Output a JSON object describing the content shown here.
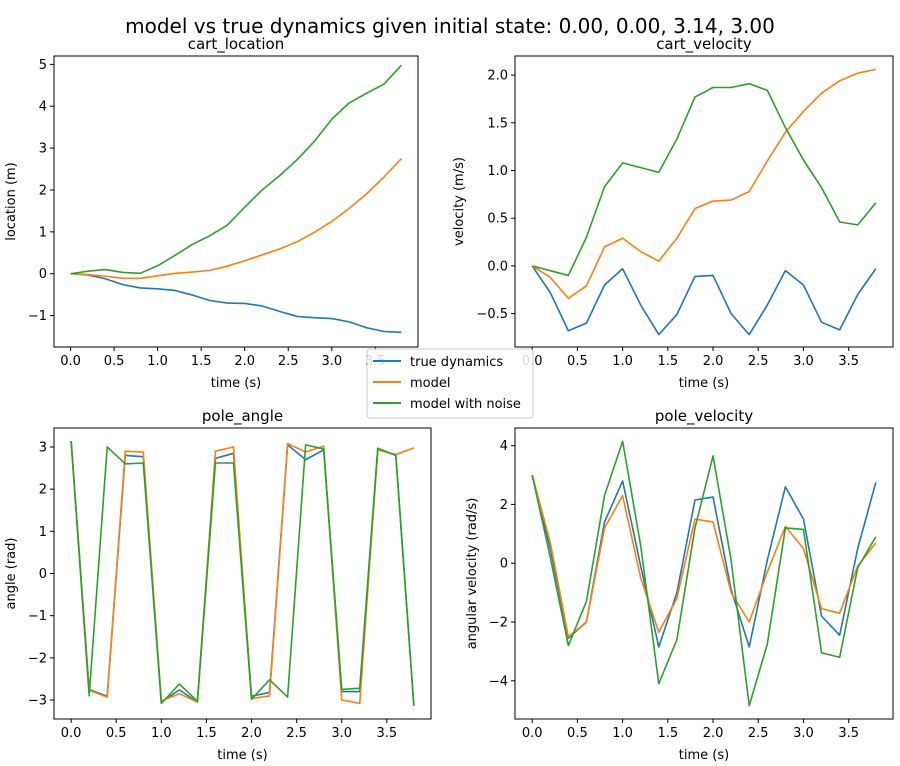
{
  "figure": {
    "suptitle": "model vs true dynamics given initial state: 0.00, 0.00, 3.14, 3.00"
  },
  "legend": {
    "entries": [
      {
        "label": "true dynamics",
        "color": "#1f77b4"
      },
      {
        "label": "model",
        "color": "#ff7f0e"
      },
      {
        "label": "model with noise",
        "color": "#2ca02c"
      }
    ]
  },
  "chart_data": [
    {
      "type": "line",
      "title": "cart_location",
      "xlabel": "time (s)",
      "ylabel": "location (m)",
      "xlim": [
        -0.19,
        3.99
      ],
      "ylim": [
        -1.75,
        5.2
      ],
      "xticks": [
        0.0,
        0.5,
        1.0,
        1.5,
        2.0,
        2.5,
        3.0,
        3.5
      ],
      "xtick_labels": [
        "0.0",
        "0.5",
        "1.0",
        "1.5",
        "2.0",
        "2.5",
        "3.0",
        "3.5"
      ],
      "yticks": [
        -1,
        0,
        1,
        2,
        3,
        4,
        5
      ],
      "ytick_labels": [
        "−1",
        "0",
        "1",
        "2",
        "3",
        "4",
        "5"
      ],
      "x": [
        0.0,
        0.2,
        0.4,
        0.6,
        0.8,
        1.0,
        1.2,
        1.4,
        1.6,
        1.8,
        2.0,
        2.2,
        2.4,
        2.6,
        2.8,
        3.0,
        3.2,
        3.4,
        3.6,
        3.8
      ],
      "series": [
        {
          "name": "true dynamics",
          "color": "#1f77b4",
          "values": [
            0.0,
            -0.03,
            -0.12,
            -0.26,
            -0.34,
            -0.36,
            -0.4,
            -0.51,
            -0.64,
            -0.7,
            -0.71,
            -0.77,
            -0.9,
            -1.02,
            -1.05,
            -1.07,
            -1.15,
            -1.29,
            -1.38,
            -1.4
          ]
        },
        {
          "name": "model",
          "color": "#ff7f0e",
          "values": [
            0.0,
            -0.02,
            -0.06,
            -0.11,
            -0.11,
            -0.05,
            0.01,
            0.04,
            0.08,
            0.18,
            0.31,
            0.45,
            0.59,
            0.76,
            0.99,
            1.25,
            1.56,
            1.91,
            2.31,
            2.75
          ]
        },
        {
          "name": "model with noise",
          "color": "#2ca02c",
          "values": [
            0.0,
            0.06,
            0.1,
            0.03,
            0.01,
            0.19,
            0.44,
            0.7,
            0.91,
            1.16,
            1.59,
            2.0,
            2.34,
            2.72,
            3.16,
            3.69,
            4.08,
            4.31,
            4.53,
            4.98
          ]
        }
      ]
    },
    {
      "type": "line",
      "title": "cart_velocity",
      "xlabel": "time (s)",
      "ylabel": "velocity (m/s)",
      "xlim": [
        -0.19,
        3.99
      ],
      "ylim": [
        -0.85,
        2.2
      ],
      "xticks": [
        0.0,
        0.5,
        1.0,
        1.5,
        2.0,
        2.5,
        3.0,
        3.5
      ],
      "xtick_labels": [
        "0.0",
        "0.5",
        "1.0",
        "1.5",
        "2.0",
        "2.5",
        "3.0",
        "3.5"
      ],
      "yticks": [
        -0.5,
        0.0,
        0.5,
        1.0,
        1.5,
        2.0
      ],
      "ytick_labels": [
        "−0.5",
        "0.0",
        "0.5",
        "1.0",
        "1.5",
        "2.0"
      ],
      "x": [
        0.0,
        0.2,
        0.4,
        0.6,
        0.8,
        1.0,
        1.2,
        1.4,
        1.6,
        1.8,
        2.0,
        2.2,
        2.4,
        2.6,
        2.8,
        3.0,
        3.2,
        3.4,
        3.6,
        3.8
      ],
      "series": [
        {
          "name": "true dynamics",
          "color": "#1f77b4",
          "values": [
            0.0,
            -0.28,
            -0.68,
            -0.6,
            -0.2,
            -0.03,
            -0.41,
            -0.72,
            -0.51,
            -0.11,
            -0.1,
            -0.5,
            -0.72,
            -0.41,
            -0.05,
            -0.2,
            -0.59,
            -0.67,
            -0.3,
            -0.03
          ]
        },
        {
          "name": "model",
          "color": "#ff7f0e",
          "values": [
            0.0,
            -0.12,
            -0.34,
            -0.21,
            0.2,
            0.29,
            0.15,
            0.05,
            0.29,
            0.6,
            0.68,
            0.69,
            0.78,
            1.1,
            1.4,
            1.62,
            1.81,
            1.94,
            2.02,
            2.06
          ]
        },
        {
          "name": "model with noise",
          "color": "#2ca02c",
          "values": [
            0.0,
            -0.05,
            -0.1,
            0.3,
            0.83,
            1.08,
            1.03,
            0.98,
            1.33,
            1.77,
            1.87,
            1.87,
            1.91,
            1.84,
            1.45,
            1.11,
            0.82,
            0.46,
            0.43,
            0.66
          ]
        }
      ]
    },
    {
      "type": "line",
      "title": "pole_angle",
      "xlabel": "time (s)",
      "ylabel": "angle (rad)",
      "xlim": [
        -0.19,
        3.99
      ],
      "ylim": [
        -3.45,
        3.45
      ],
      "xticks": [
        0.0,
        0.5,
        1.0,
        1.5,
        2.0,
        2.5,
        3.0,
        3.5
      ],
      "xtick_labels": [
        "0.0",
        "0.5",
        "1.0",
        "1.5",
        "2.0",
        "2.5",
        "3.0",
        "3.5"
      ],
      "yticks": [
        -3,
        -2,
        -1,
        0,
        1,
        2,
        3
      ],
      "ytick_labels": [
        "−3",
        "−2",
        "−1",
        "0",
        "1",
        "2",
        "3"
      ],
      "x": [
        0.0,
        0.2,
        0.4,
        0.6,
        0.8,
        1.0,
        1.2,
        1.4,
        1.6,
        1.8,
        2.0,
        2.2,
        2.4,
        2.6,
        2.8,
        3.0,
        3.2,
        3.4,
        3.6,
        3.8
      ],
      "series": [
        {
          "name": "true dynamics",
          "color": "#1f77b4",
          "values": [
            3.14,
            -2.75,
            -2.91,
            2.8,
            2.77,
            -3.05,
            -2.76,
            -3.05,
            2.73,
            2.85,
            -2.91,
            -2.82,
            3.05,
            2.7,
            2.93,
            -2.8,
            -2.8,
            2.95,
            2.8,
            -3.14
          ]
        },
        {
          "name": "model",
          "color": "#ff7f0e",
          "values": [
            3.14,
            -2.77,
            -2.93,
            2.9,
            2.88,
            -3.02,
            -2.85,
            -3.05,
            2.9,
            3.0,
            -2.97,
            -2.9,
            3.08,
            2.88,
            3.02,
            -3.0,
            -3.08,
            2.93,
            2.82,
            2.98
          ]
        },
        {
          "name": "model with noise",
          "color": "#2ca02c",
          "values": [
            3.14,
            -2.9,
            3.0,
            2.6,
            2.62,
            -3.08,
            -2.62,
            -3.03,
            2.62,
            2.62,
            -2.98,
            -2.52,
            -2.93,
            3.05,
            2.95,
            -2.75,
            -2.72,
            2.97,
            2.8,
            -3.14
          ]
        }
      ]
    },
    {
      "type": "line",
      "title": "pole_velocity",
      "xlabel": "time (s)",
      "ylabel": "angular velocity (rad/s)",
      "xlim": [
        -0.19,
        3.99
      ],
      "ylim": [
        -5.3,
        4.6
      ],
      "xticks": [
        0.0,
        0.5,
        1.0,
        1.5,
        2.0,
        2.5,
        3.0,
        3.5
      ],
      "xtick_labels": [
        "0.0",
        "0.5",
        "1.0",
        "1.5",
        "2.0",
        "2.5",
        "3.0",
        "3.5"
      ],
      "yticks": [
        -4,
        -2,
        0,
        2,
        4
      ],
      "ytick_labels": [
        "−4",
        "−2",
        "0",
        "2",
        "4"
      ],
      "x": [
        0.0,
        0.2,
        0.4,
        0.6,
        0.8,
        1.0,
        1.2,
        1.4,
        1.6,
        1.8,
        2.0,
        2.2,
        2.4,
        2.6,
        2.8,
        3.0,
        3.2,
        3.4,
        3.6,
        3.8
      ],
      "series": [
        {
          "name": "true dynamics",
          "color": "#1f77b4",
          "values": [
            3.0,
            0.5,
            -2.55,
            -2.0,
            1.4,
            2.8,
            -0.1,
            -2.85,
            -1.0,
            2.15,
            2.25,
            -0.9,
            -2.85,
            0.1,
            2.6,
            1.5,
            -1.8,
            -2.45,
            0.5,
            2.75
          ]
        },
        {
          "name": "model",
          "color": "#ff7f0e",
          "values": [
            3.0,
            0.7,
            -2.5,
            -2.0,
            1.2,
            2.3,
            -0.5,
            -2.35,
            -1.2,
            1.5,
            1.4,
            -1.0,
            -2.0,
            -0.3,
            1.25,
            0.5,
            -1.55,
            -1.7,
            -0.1,
            0.7
          ]
        },
        {
          "name": "model with noise",
          "color": "#2ca02c",
          "values": [
            3.0,
            0.2,
            -2.8,
            -1.3,
            2.3,
            4.15,
            0.6,
            -4.1,
            -2.6,
            1.2,
            3.65,
            0.1,
            -4.85,
            -2.75,
            1.2,
            1.15,
            -3.05,
            -3.2,
            -0.15,
            0.9
          ]
        }
      ]
    }
  ]
}
